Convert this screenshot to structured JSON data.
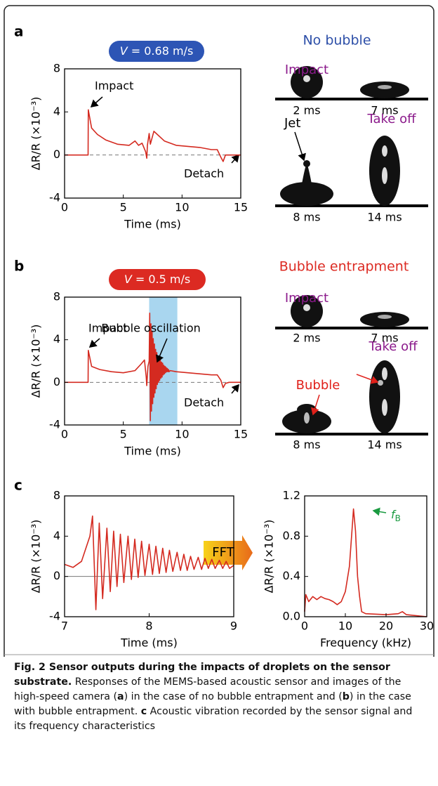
{
  "panels": [
    {
      "label": "a",
      "var": "V",
      "speed": " = 0.68 m/s",
      "condition": "No bubble",
      "image_labels": [
        "Impact",
        "Jet",
        "Take off"
      ],
      "times": [
        "2 ms",
        "7 ms",
        "8 ms",
        "14 ms"
      ]
    },
    {
      "label": "b",
      "var": "V",
      "speed": " = 0.5 m/s",
      "condition": "Bubble entrapment",
      "image_labels": [
        "Impact",
        "Bubble",
        "Take off"
      ],
      "times": [
        "2 ms",
        "7 ms",
        "8 ms",
        "14 ms"
      ]
    },
    {
      "label": "c",
      "fft": "FFT"
    }
  ],
  "chart_data": [
    {
      "type": "line",
      "color": "#d42a20",
      "x_label": "Time (ms)",
      "y_label": "ΔR/R (×10⁻³)",
      "xlim": [
        0,
        15
      ],
      "ylim": [
        -4,
        8
      ],
      "xticks": [
        0,
        5,
        10,
        15
      ],
      "yticks": [
        -4,
        0,
        4,
        8
      ],
      "hline": 0,
      "hline_dash": true,
      "annotations": [
        "Impact",
        "Detach"
      ],
      "x": [
        0,
        1.95,
        2.0,
        2.02,
        2.3,
        2.8,
        3.5,
        4.5,
        5.5,
        6.0,
        6.3,
        6.6,
        6.9,
        7.0,
        7.05,
        7.2,
        7.3,
        7.6,
        8.5,
        9.5,
        10.5,
        11.5,
        12.5,
        13.0,
        13.3,
        13.5,
        13.7,
        14,
        15
      ],
      "values": [
        0,
        0,
        0,
        4.2,
        2.5,
        1.9,
        1.4,
        1.0,
        0.9,
        1.3,
        0.9,
        1.1,
        0.3,
        -0.3,
        0.9,
        2.0,
        1.0,
        2.2,
        1.3,
        0.9,
        0.8,
        0.7,
        0.5,
        0.5,
        -0.2,
        -0.6,
        0,
        0,
        0
      ]
    },
    {
      "type": "line",
      "color": "#d42a20",
      "x_label": "Time (ms)",
      "y_label": "ΔR/R (×10⁻³)",
      "xlim": [
        0,
        15
      ],
      "ylim": [
        -4,
        8
      ],
      "xticks": [
        0,
        5,
        10,
        15
      ],
      "yticks": [
        -4,
        0,
        4,
        8
      ],
      "hline": 0,
      "hline_dash": true,
      "span": [
        7.2,
        9.6
      ],
      "span_color": "#a9d6ef",
      "annotations": [
        "Bubble oscillation",
        "Impact",
        "Detach"
      ],
      "x": [
        0,
        2.0,
        2.02,
        2.3,
        3,
        4,
        5,
        6,
        6.5,
        6.8,
        6.95,
        7.0,
        7.1,
        7.2,
        7.25,
        7.3,
        7.35,
        7.4,
        7.45,
        7.5,
        7.55,
        7.6,
        7.65,
        7.7,
        7.75,
        7.8,
        7.85,
        7.9,
        7.95,
        8.0,
        8.05,
        8.1,
        8.15,
        8.2,
        8.25,
        8.3,
        8.35,
        8.4,
        8.45,
        8.5,
        8.55,
        8.6,
        8.65,
        8.7,
        8.75,
        8.8,
        8.85,
        8.9,
        9.0,
        9.5,
        10.5,
        11.5,
        12.5,
        13.0,
        13.3,
        13.5,
        13.7,
        14,
        15
      ],
      "values": [
        0,
        0,
        3.0,
        1.5,
        1.2,
        1.0,
        0.9,
        1.1,
        1.7,
        2.1,
        0.5,
        -0.3,
        1.5,
        2.0,
        6.5,
        -3.6,
        5.5,
        -2.7,
        4.8,
        -2.0,
        4.1,
        -1.4,
        3.6,
        -1.0,
        3.1,
        -0.6,
        2.8,
        -0.2,
        2.5,
        0.0,
        2.3,
        0.2,
        2.1,
        0.4,
        1.9,
        0.5,
        1.8,
        0.7,
        1.6,
        0.8,
        1.5,
        0.9,
        1.4,
        1.0,
        1.3,
        1.0,
        1.2,
        1.0,
        1.1,
        1.0,
        0.9,
        0.8,
        0.7,
        0.7,
        0.2,
        -0.5,
        -0.1,
        0,
        0
      ]
    },
    {
      "type": "line",
      "color": "#d42a20",
      "x_label": "Time (ms)",
      "y_label": "ΔR/R (×10⁻³)",
      "xlim": [
        7,
        9
      ],
      "ylim": [
        -4,
        8
      ],
      "xticks": [
        7,
        8,
        9
      ],
      "yticks": [
        -4,
        0,
        4,
        8
      ],
      "hline": 0,
      "hline_dash": false,
      "x": [
        7.0,
        7.1,
        7.2,
        7.3,
        7.33,
        7.37,
        7.41,
        7.45,
        7.5,
        7.54,
        7.58,
        7.62,
        7.66,
        7.7,
        7.75,
        7.79,
        7.83,
        7.87,
        7.91,
        7.95,
        8.0,
        8.04,
        8.08,
        8.12,
        8.16,
        8.2,
        8.24,
        8.28,
        8.33,
        8.37,
        8.41,
        8.45,
        8.49,
        8.53,
        8.58,
        8.62,
        8.66,
        8.7,
        8.74,
        8.78,
        8.83,
        8.87,
        8.91,
        8.95,
        9.0
      ],
      "values": [
        1.2,
        0.9,
        1.5,
        4.0,
        6.0,
        -3.3,
        5.3,
        -2.2,
        4.8,
        -1.5,
        4.5,
        -1.0,
        4.2,
        -0.6,
        4.0,
        -0.3,
        3.7,
        -0.1,
        3.5,
        0.1,
        3.2,
        0.2,
        3.0,
        0.3,
        2.8,
        0.4,
        2.6,
        0.5,
        2.4,
        0.6,
        2.2,
        0.6,
        2.0,
        0.7,
        1.9,
        0.7,
        1.8,
        0.8,
        1.7,
        0.8,
        1.6,
        0.8,
        1.5,
        0.8,
        1.1
      ]
    },
    {
      "type": "line",
      "color": "#d42a20",
      "x_label": "Frequency (kHz)",
      "y_label": "ΔR/R (×10⁻³)",
      "xlim": [
        0,
        30
      ],
      "ylim": [
        0,
        1.2
      ],
      "xticks": [
        0,
        10,
        20,
        30
      ],
      "yticks": [
        {
          "value": 0,
          "label": "0.0"
        },
        0.4,
        0.8,
        1.2
      ],
      "annotations": [
        "f",
        "B"
      ],
      "x": [
        0,
        0.3,
        1,
        2,
        3,
        4,
        5,
        6,
        7,
        8,
        9,
        10,
        11,
        11.7,
        12,
        12.5,
        13,
        13.5,
        14,
        15,
        20,
        23,
        24,
        25,
        30
      ],
      "values": [
        0.05,
        0.22,
        0.15,
        0.2,
        0.17,
        0.2,
        0.18,
        0.17,
        0.15,
        0.12,
        0.15,
        0.25,
        0.5,
        0.9,
        1.07,
        0.85,
        0.4,
        0.2,
        0.05,
        0.03,
        0.02,
        0.03,
        0.05,
        0.02,
        0.0
      ]
    }
  ],
  "caption": {
    "title": "Fig. 2 Sensor outputs during the impacts of droplets on the sensor substrate.",
    "parts": [
      " Responses of the MEMS-based acoustic sensor and images of the high-speed camera (",
      "a",
      ") in the case of no bubble entrapment and (",
      "b",
      ") in the case with bubble entrapment. ",
      "c",
      " Acoustic vibration recorded by the sensor signal and its frequency characteristics"
    ]
  }
}
